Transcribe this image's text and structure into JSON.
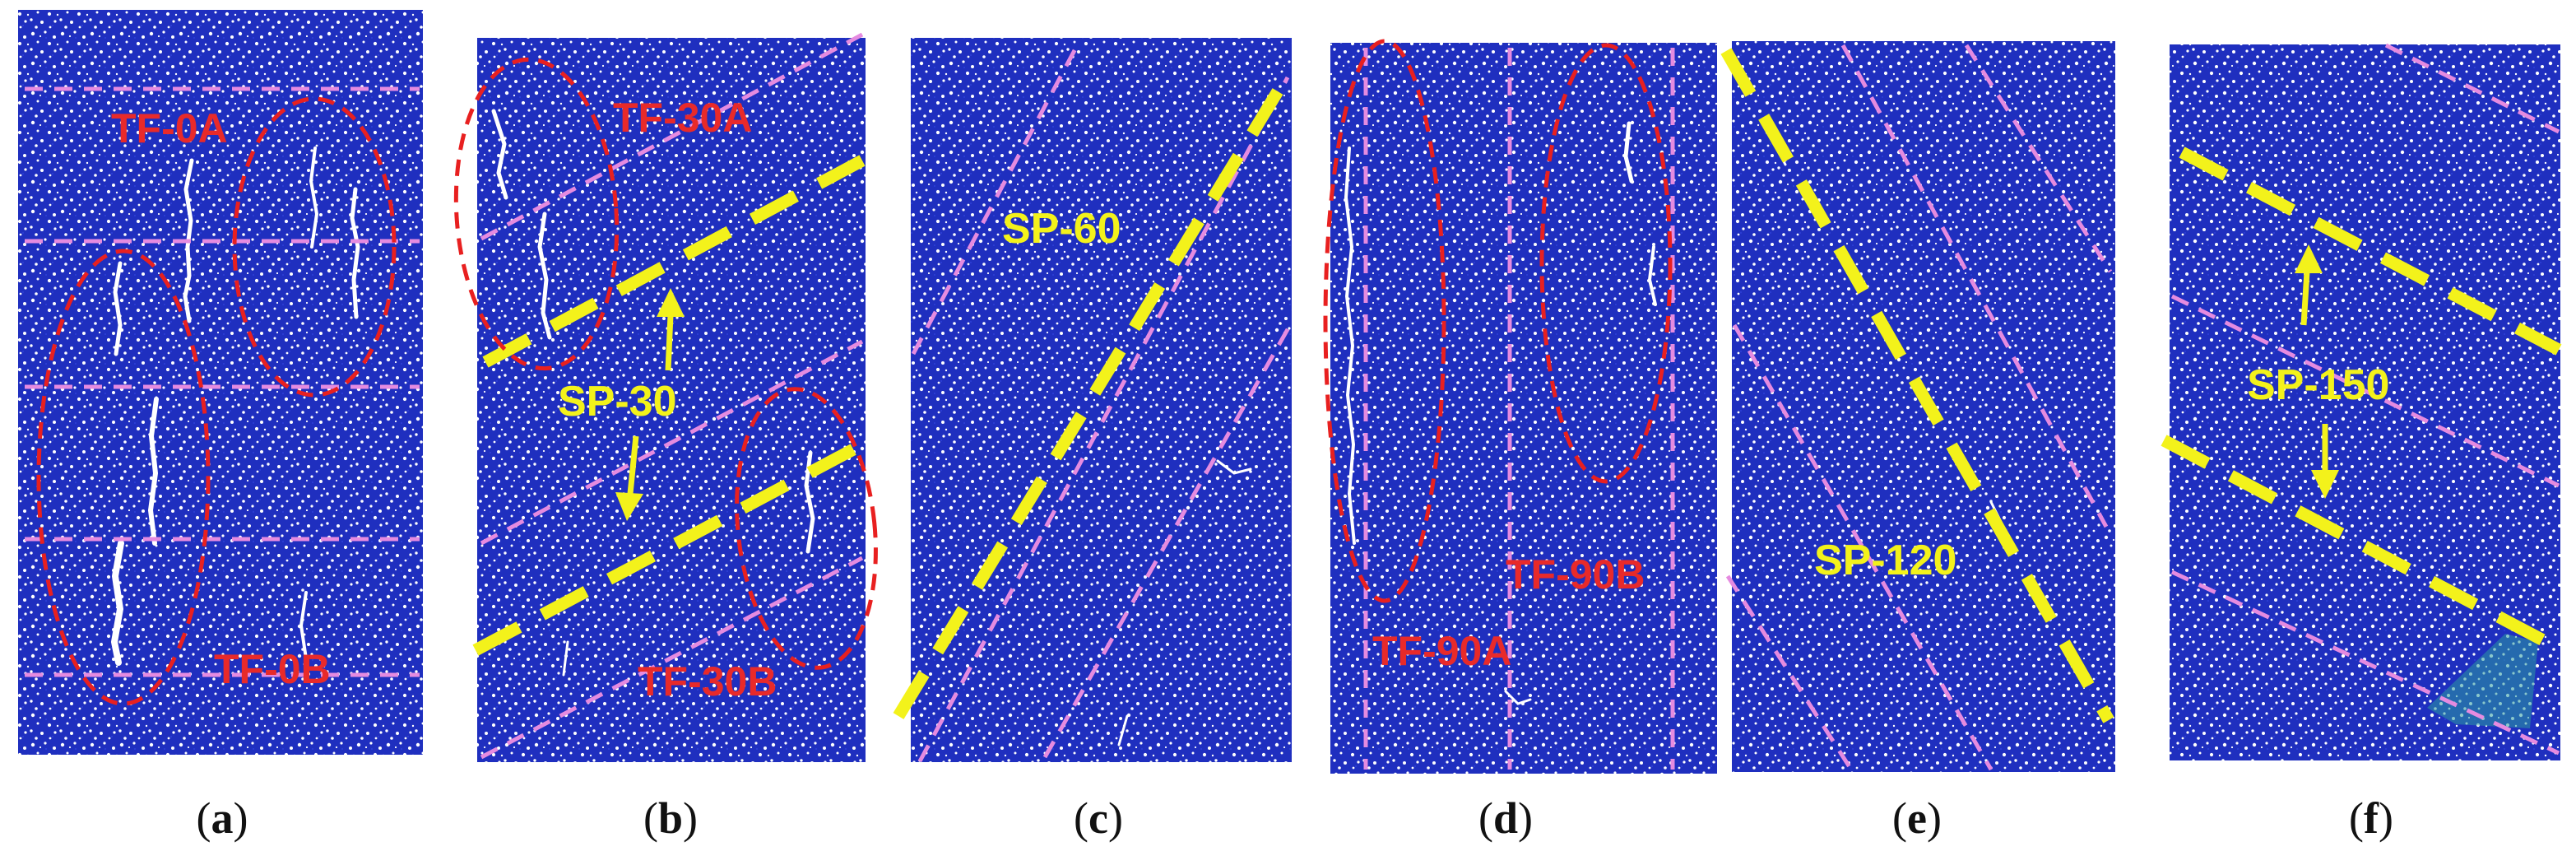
{
  "panels": [
    {
      "caption_letter": "a",
      "labels": [
        "TF-0A",
        "TF-0B"
      ]
    },
    {
      "caption_letter": "b",
      "labels": [
        "TF-30A",
        "SP-30",
        "TF-30B"
      ]
    },
    {
      "caption_letter": "c",
      "labels": [
        "SP-60"
      ]
    },
    {
      "caption_letter": "d",
      "labels": [
        "TF-90A",
        "TF-90B"
      ]
    },
    {
      "caption_letter": "e",
      "labels": [
        "SP-120"
      ]
    },
    {
      "caption_letter": "f",
      "labels": [
        "SP-150"
      ]
    }
  ],
  "colors": {
    "particle_blue": "#1f2fbf",
    "crack_white": "#ffffff",
    "shear_plane_yellow": "#f3f21b",
    "layer_boundary_pink": "#e58be0",
    "fracture_zone_red": "#e82020",
    "label_red": "#e82a2a"
  }
}
